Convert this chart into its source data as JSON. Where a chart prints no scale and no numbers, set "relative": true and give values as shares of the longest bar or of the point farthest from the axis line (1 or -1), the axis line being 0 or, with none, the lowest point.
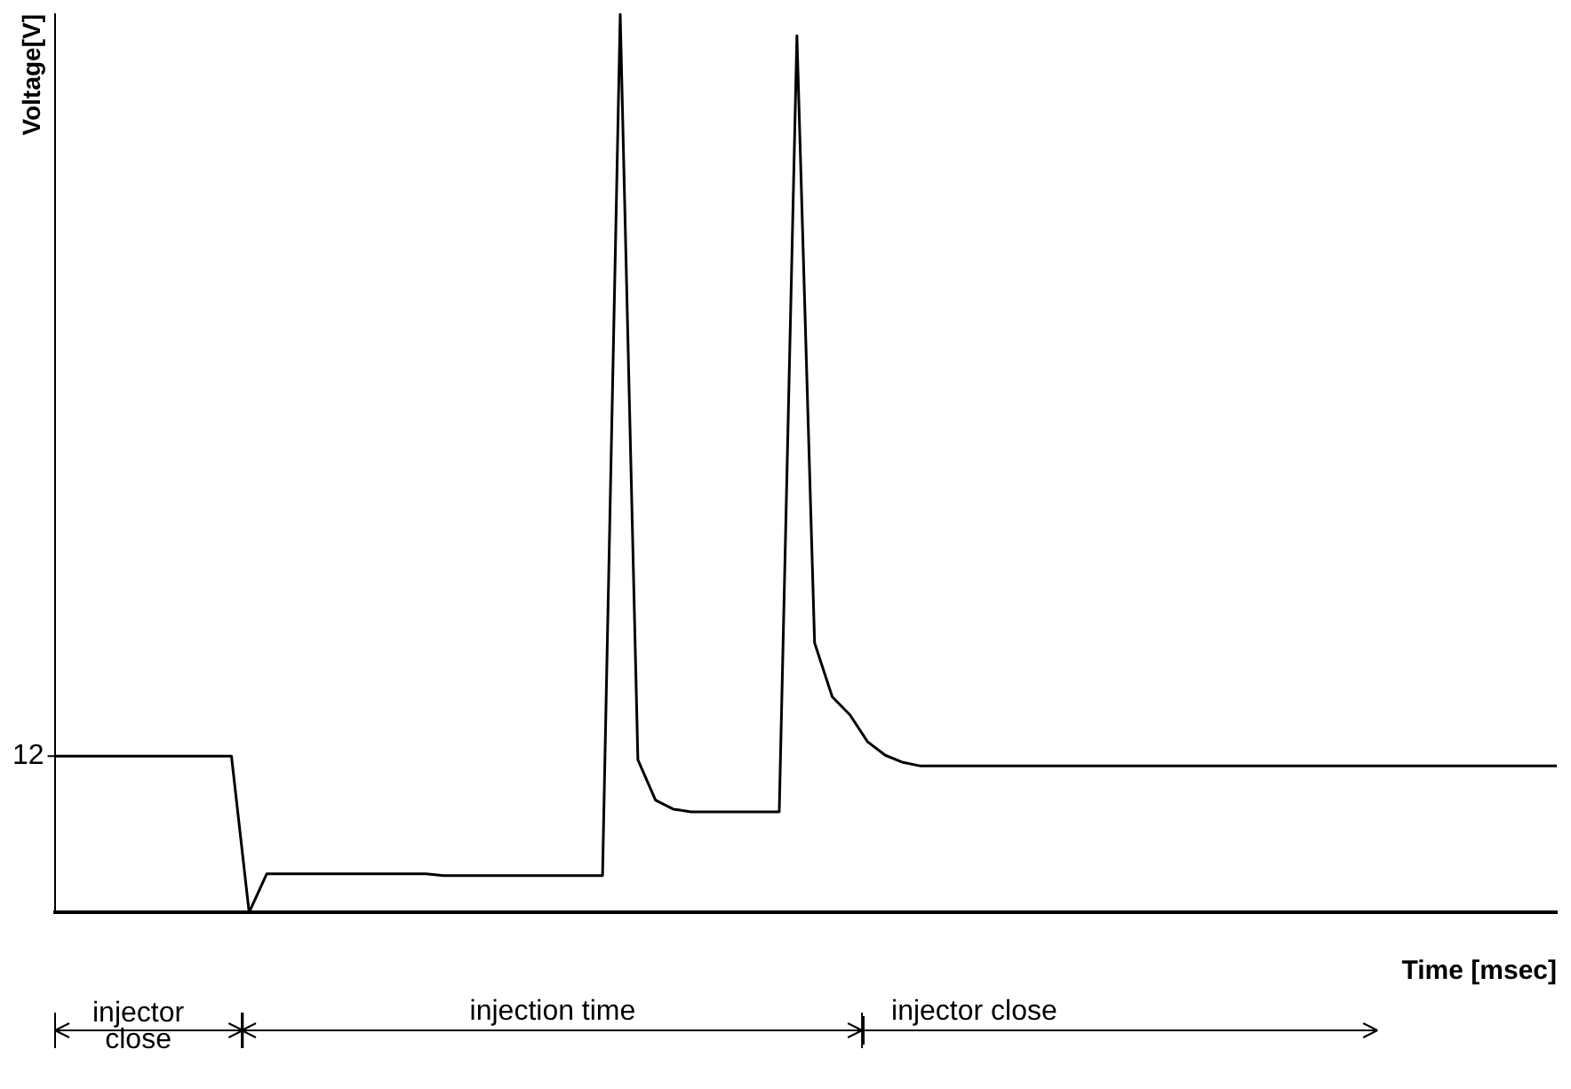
{
  "chart_data": {
    "type": "line",
    "relative": true,
    "xlabel": "Time [msec]",
    "ylabel": "Voltage[V]",
    "categories": [
      null,
      null,
      null,
      null,
      null,
      null,
      null,
      null,
      null,
      null,
      null,
      null,
      null,
      null,
      null,
      null,
      null,
      null,
      null,
      null,
      null,
      null,
      null,
      null,
      null,
      null,
      null,
      null,
      null,
      null,
      null,
      null,
      null,
      null,
      null,
      null,
      null,
      null,
      null,
      null,
      null,
      null,
      null,
      null,
      null,
      null,
      null,
      null,
      null,
      null,
      null,
      null,
      null,
      null,
      null,
      null,
      null,
      null,
      null,
      null,
      null,
      null,
      null,
      null,
      null,
      null,
      null,
      null,
      null,
      null,
      null,
      null,
      null,
      null,
      null,
      null,
      null,
      null,
      null,
      null,
      null,
      null,
      null,
      null,
      null,
      null
    ],
    "series": [
      {
        "color": "#000000",
        "values": [
          0.174,
          0.174,
          0.174,
          0.174,
          0.174,
          0.174,
          0.174,
          0.174,
          0.174,
          0.174,
          0.174,
          0,
          0.043,
          0.043,
          0.043,
          0.043,
          0.043,
          0.043,
          0.043,
          0.043,
          0.043,
          0.043,
          0.041,
          0.041,
          0.041,
          0.041,
          0.041,
          0.041,
          0.041,
          0.041,
          0.041,
          0.041,
          1,
          0.17,
          0.125,
          0.115,
          0.112,
          0.112,
          0.112,
          0.112,
          0.112,
          0.112,
          0.976,
          0.3,
          0.24,
          0.22,
          0.19,
          0.175,
          0.167,
          0.163,
          0.163,
          0.163,
          0.163,
          0.163,
          0.163,
          0.163,
          0.163,
          0.163,
          0.163,
          0.163,
          0.163,
          0.163,
          0.163,
          0.163,
          0.163,
          0.163,
          0.163,
          0.163,
          0.163,
          0.163,
          0.163,
          0.163,
          0.163,
          0.163,
          0.163,
          0.163,
          0.163,
          0.163,
          0.163,
          0.163,
          0.163,
          0.163,
          0.163,
          0.163,
          0.163,
          0.163
        ]
      }
    ],
    "annotations": [
      "12",
      "injector close",
      "injection time",
      "injector close"
    ],
    "marker": "none",
    "line_style": "solid",
    "grid": false,
    "legend": false
  }
}
